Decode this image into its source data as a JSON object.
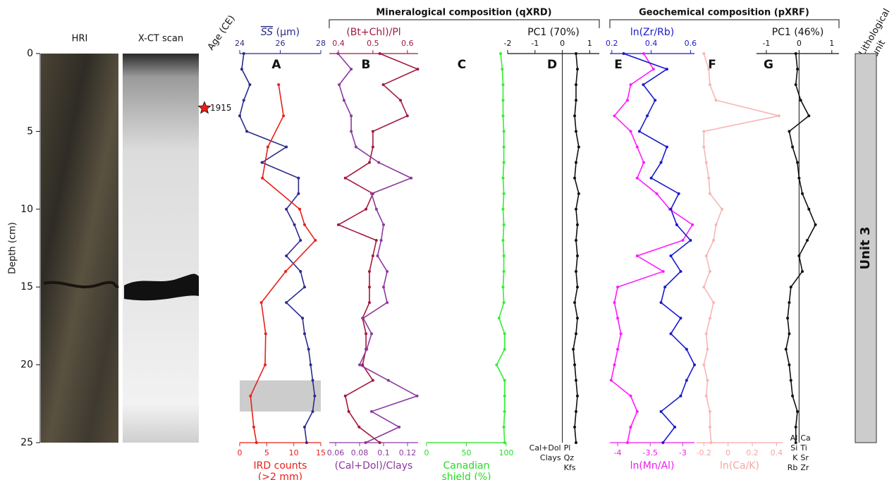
{
  "chart_data": {
    "type": "depth-profile",
    "groups": [
      "Mineralogical composition (qXRD)",
      "Geochemical composition (pXRF)"
    ],
    "images": [
      "HRI",
      "X-CT scan"
    ],
    "age": {
      "label": "Age (CE)",
      "marker_depth": 3.5,
      "marker_year": 1915
    },
    "depth_axis": {
      "label": "Depth (cm)",
      "ylim": [
        0,
        25
      ],
      "yticks": [
        0,
        5,
        10,
        15,
        20,
        25
      ]
    },
    "lithology": {
      "label": [
        "Lithological",
        "unit"
      ],
      "units": [
        {
          "name": "Unit 3",
          "top": 0,
          "bottom": 25
        }
      ]
    },
    "panels": [
      {
        "type": "line",
        "letter": "A",
        "shade": [
          21,
          23
        ],
        "top_axis": {
          "label": {
            "symbol": "SS",
            "unit": " (μm)"
          },
          "color": "#2b2b8c",
          "xlim": [
            24,
            28
          ],
          "xticks": [
            24,
            26,
            28
          ]
        },
        "bottom_axis": {
          "label": [
            "IRD counts",
            "(>2 mm)"
          ],
          "color": "#e8201a",
          "xlim": [
            0,
            15
          ],
          "xticks": [
            0,
            5,
            10,
            15
          ]
        },
        "series": [
          {
            "axis": "top",
            "color": "#2b2b8c",
            "depths": [
              0,
              1,
              2,
              3,
              4,
              5,
              6,
              7,
              8,
              9,
              10,
              11,
              12,
              13,
              14,
              15,
              16,
              17,
              18,
              19,
              20,
              21,
              22,
              23,
              24,
              25
            ],
            "values": [
              24.2,
              24.1,
              24.5,
              24.2,
              24.0,
              24.35,
              26.3,
              25.1,
              26.9,
              26.9,
              26.3,
              26.7,
              27.0,
              26.3,
              27.0,
              27.2,
              26.3,
              27.1,
              27.2,
              27.4,
              27.5,
              27.6,
              27.7,
              27.6,
              27.2,
              27.3
            ]
          },
          {
            "axis": "bottom",
            "color": "#e8201a",
            "depths": [
              2,
              4,
              6,
              8,
              10,
              11,
              12,
              14,
              16,
              18,
              20,
              22,
              24,
              25
            ],
            "values": [
              7.2,
              8.1,
              5.2,
              4.2,
              11.1,
              12.0,
              14.0,
              8.5,
              4.0,
              4.8,
              4.7,
              2.0,
              2.6,
              3.1
            ]
          }
        ]
      },
      {
        "type": "line",
        "letter": "B",
        "top_axis": {
          "label": "(Bt+Chl)/Pl",
          "color": "#a3193e",
          "xlim": [
            0.3735,
            0.631
          ],
          "xticks": [
            0.4,
            0.5,
            0.6
          ]
        },
        "bottom_axis": {
          "label": [
            "(Cal+Dol)/Clays"
          ],
          "color": "#8b3a9e",
          "xlim": [
            0.0547,
            0.1288
          ],
          "xticks": [
            0.06,
            0.08,
            0.1,
            0.12
          ]
        },
        "series": [
          {
            "axis": "top",
            "color": "#a3193e",
            "depths": [
              0,
              1,
              2,
              3,
              4,
              5,
              6,
              7,
              8,
              9,
              10,
              11,
              12,
              13,
              14,
              15,
              16,
              17,
              18,
              19,
              20,
              21,
              22,
              23,
              24,
              25
            ],
            "values": [
              0.52,
              0.63,
              0.53,
              0.58,
              0.6,
              0.5,
              0.5,
              0.49,
              0.42,
              0.5,
              0.48,
              0.4,
              0.51,
              0.5,
              0.49,
              0.49,
              0.49,
              0.47,
              0.48,
              0.48,
              0.47,
              0.5,
              0.42,
              0.43,
              0.46,
              0.52
            ]
          },
          {
            "axis": "bottom",
            "color": "#8b3a9e",
            "depths": [
              0,
              1,
              2,
              3,
              4,
              5,
              6,
              7,
              8,
              9,
              10,
              11,
              12,
              13,
              14,
              15,
              16,
              17,
              18,
              19,
              20,
              21,
              22,
              23,
              24,
              25
            ],
            "values": [
              0.062,
              0.073,
              0.063,
              0.067,
              0.073,
              0.073,
              0.077,
              0.096,
              0.123,
              0.09,
              0.094,
              0.1,
              0.098,
              0.095,
              0.103,
              0.1,
              0.103,
              0.083,
              0.09,
              0.086,
              0.08,
              0.104,
              0.128,
              0.09,
              0.113,
              0.085
            ]
          }
        ]
      },
      {
        "type": "line",
        "letter": "C",
        "bottom_axis": {
          "label": [
            "Canadian",
            "shield (%)"
          ],
          "color": "#22dd22",
          "xlim": [
            0,
            100
          ],
          "xticks": [
            0,
            50,
            100
          ]
        },
        "series": [
          {
            "axis": "bottom",
            "color": "#33ee33",
            "depths": [
              0,
              1,
              2,
              3,
              4,
              5,
              6,
              7,
              8,
              9,
              10,
              11,
              12,
              13,
              14,
              15,
              16,
              17,
              18,
              19,
              20,
              21,
              22,
              23,
              24,
              25
            ],
            "values": [
              93,
              95,
              96,
              96,
              96,
              97,
              97,
              97,
              96,
              97,
              96,
              97,
              96,
              97,
              97,
              96,
              97,
              91,
              98,
              98,
              88,
              98,
              98,
              98,
              97,
              98
            ]
          }
        ]
      },
      {
        "type": "line",
        "letter": "D",
        "zero_line": true,
        "composition": {
          "left": [
            "Cal+Dol",
            "Clays"
          ],
          "right": [
            "Pl",
            "Qz",
            "Kfs"
          ]
        },
        "top_axis": {
          "label": "PC1 (70%)",
          "color": "#111111",
          "xlim": [
            -2,
            1.35
          ],
          "xticks": [
            -2,
            -1,
            0,
            1
          ]
        },
        "series": [
          {
            "axis": "top",
            "color": "#111111",
            "depths": [
              0,
              1,
              2,
              3,
              4,
              5,
              6,
              7,
              8,
              9,
              10,
              11,
              12,
              13,
              14,
              15,
              16,
              17,
              18,
              19,
              20,
              21,
              22,
              23,
              24,
              25
            ],
            "values": [
              0.5,
              0.55,
              0.5,
              0.5,
              0.45,
              0.5,
              0.6,
              0.5,
              0.45,
              0.6,
              0.5,
              0.55,
              0.5,
              0.55,
              0.5,
              0.55,
              0.45,
              0.55,
              0.5,
              0.4,
              0.45,
              0.5,
              0.55,
              0.5,
              0.45,
              0.5
            ]
          }
        ]
      },
      {
        "type": "line",
        "letter": "E",
        "top_axis": {
          "label": "ln(Zr/Rb)",
          "color": "#1a1acc",
          "xlim": [
            0.19,
            0.62
          ],
          "xticks": [
            0.2,
            0.4,
            0.6
          ]
        },
        "bottom_axis": {
          "label": [
            "ln(Mn/Al)"
          ],
          "color": "#ee1aee",
          "xlim": [
            -4.12,
            -2.82
          ],
          "xticks": [
            -4,
            -3.5,
            -3
          ]
        },
        "series": [
          {
            "axis": "bottom",
            "color": "#ff1aff",
            "depths": [
              0,
              1,
              2,
              3,
              4,
              5,
              6,
              7,
              8,
              9,
              10,
              11,
              12,
              13,
              14,
              15,
              16,
              17,
              18,
              19,
              20,
              21,
              22,
              23,
              24,
              25
            ],
            "values": [
              -3.6,
              -3.45,
              -3.8,
              -3.85,
              -4.05,
              -3.8,
              -3.7,
              -3.6,
              -3.7,
              -3.4,
              -3.2,
              -2.85,
              -3.0,
              -3.7,
              -3.3,
              -4.0,
              -4.05,
              -4.0,
              -3.95,
              -4.0,
              -4.05,
              -4.1,
              -3.8,
              -3.7,
              -3.8,
              -3.85
            ]
          },
          {
            "axis": "top",
            "color": "#1a1acc",
            "depths": [
              0,
              1,
              2,
              3,
              4,
              5,
              6,
              7,
              8,
              9,
              10,
              11,
              12,
              13,
              14,
              15,
              16,
              17,
              18,
              19,
              20,
              21,
              22,
              23,
              24,
              25
            ],
            "values": [
              0.26,
              0.48,
              0.36,
              0.42,
              0.38,
              0.34,
              0.48,
              0.45,
              0.4,
              0.54,
              0.5,
              0.53,
              0.6,
              0.5,
              0.55,
              0.47,
              0.45,
              0.55,
              0.5,
              0.58,
              0.62,
              0.58,
              0.55,
              0.45,
              0.52,
              0.46
            ]
          }
        ]
      },
      {
        "type": "line",
        "letter": "F",
        "bottom_axis": {
          "label": [
            "ln(Ca/K)"
          ],
          "color": "#f4a6a6",
          "xlim": [
            -0.26,
            0.45
          ],
          "xticks": [
            -0.2,
            0,
            0.2,
            0.4
          ]
        },
        "series": [
          {
            "axis": "bottom",
            "color": "#f7b6b6",
            "depths": [
              0,
              1,
              2,
              3,
              4,
              5,
              6,
              7,
              8,
              9,
              10,
              11,
              12,
              13,
              14,
              15,
              16,
              17,
              18,
              19,
              20,
              21,
              22,
              23,
              24,
              25
            ],
            "values": [
              -0.2,
              -0.16,
              -0.15,
              -0.1,
              0.42,
              -0.2,
              -0.2,
              -0.18,
              -0.16,
              -0.15,
              -0.05,
              -0.1,
              -0.12,
              -0.18,
              -0.15,
              -0.2,
              -0.12,
              -0.15,
              -0.18,
              -0.17,
              -0.2,
              -0.17,
              -0.18,
              -0.15,
              -0.15,
              -0.14
            ]
          }
        ]
      },
      {
        "type": "line",
        "letter": "G",
        "zero_line": true,
        "composition": {
          "left": [
            "Al",
            "Si",
            "K",
            "Rb"
          ],
          "right": [
            "Ca",
            "Ti",
            "Sr",
            "Zr"
          ]
        },
        "top_axis": {
          "label": "PC1 (46%)",
          "color": "#111111",
          "xlim": [
            -1.3,
            1.22
          ],
          "xticks": [
            -1,
            0,
            1
          ]
        },
        "series": [
          {
            "axis": "top",
            "color": "#111111",
            "depths": [
              0,
              1,
              2,
              3,
              4,
              5,
              6,
              7,
              8,
              9,
              10,
              11,
              12,
              13,
              14,
              15,
              16,
              17,
              18,
              19,
              20,
              21,
              22,
              23,
              24,
              25
            ],
            "values": [
              -0.1,
              -0.05,
              -0.1,
              0.05,
              0.3,
              -0.3,
              -0.2,
              -0.05,
              0.0,
              0.1,
              0.3,
              0.5,
              0.25,
              0.0,
              0.1,
              -0.25,
              -0.3,
              -0.35,
              -0.3,
              -0.4,
              -0.3,
              -0.25,
              -0.2,
              -0.05,
              -0.1,
              -0.1
            ]
          }
        ]
      }
    ]
  }
}
